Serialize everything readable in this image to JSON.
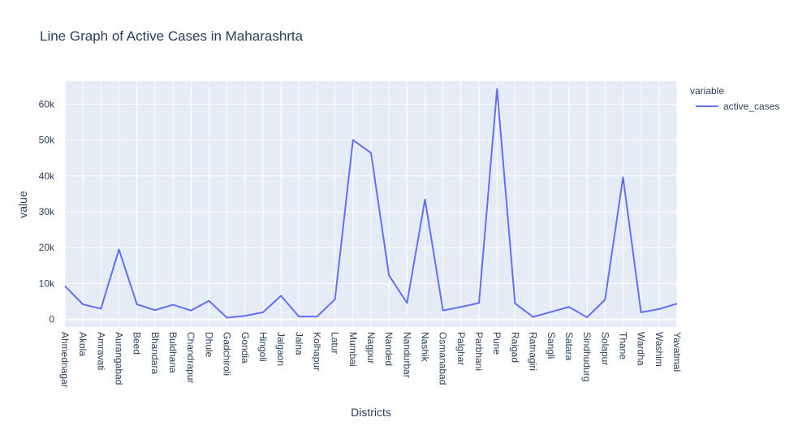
{
  "chart_data": {
    "type": "line",
    "title": "Line Graph of Active Cases in Maharashrta",
    "xlabel": "Districts",
    "ylabel": "value",
    "legend_title": "variable",
    "legend_position": "top-right",
    "grid": true,
    "colors": {
      "plot_bg": "#e5ecf6",
      "grid": "#ffffff",
      "line": "#636efa",
      "text": "#2a3f5f"
    },
    "ylim": [
      -2100,
      66400
    ],
    "yticks": [
      0,
      10000,
      20000,
      30000,
      40000,
      50000,
      60000
    ],
    "ytick_labels": [
      "0",
      "10k",
      "20k",
      "30k",
      "40k",
      "50k",
      "60k"
    ],
    "categories": [
      "Ahmednagar",
      "Akola",
      "Amravati",
      "Aurangabad",
      "Beed",
      "Bhandara",
      "Buldhana",
      "Chandrapur",
      "Dhule",
      "Gadchiroli",
      "Gondia",
      "Hingoli",
      "Jalgaon",
      "Jalna",
      "Kolhapur",
      "Latur",
      "Mumbai",
      "Nagpur",
      "Nanded",
      "Nandurbar",
      "Nashik",
      "Osmanabad",
      "Palghar",
      "Parbhani",
      "Pune",
      "Raigad",
      "Ratnagiri",
      "Sangli",
      "Satara",
      "Sindhudurg",
      "Solapur",
      "Thane",
      "Wardha",
      "Washim",
      "Yavatmal"
    ],
    "series": [
      {
        "name": "active_cases",
        "values": [
          9300,
          4200,
          3000,
          19500,
          4200,
          2600,
          4100,
          2500,
          5200,
          500,
          1000,
          2000,
          6600,
          800,
          800,
          5600,
          50000,
          46400,
          12300,
          4600,
          33400,
          2500,
          3500,
          4600,
          64200,
          4500,
          700,
          2100,
          3500,
          600,
          5500,
          39600,
          2000,
          2900,
          4400
        ]
      }
    ]
  }
}
